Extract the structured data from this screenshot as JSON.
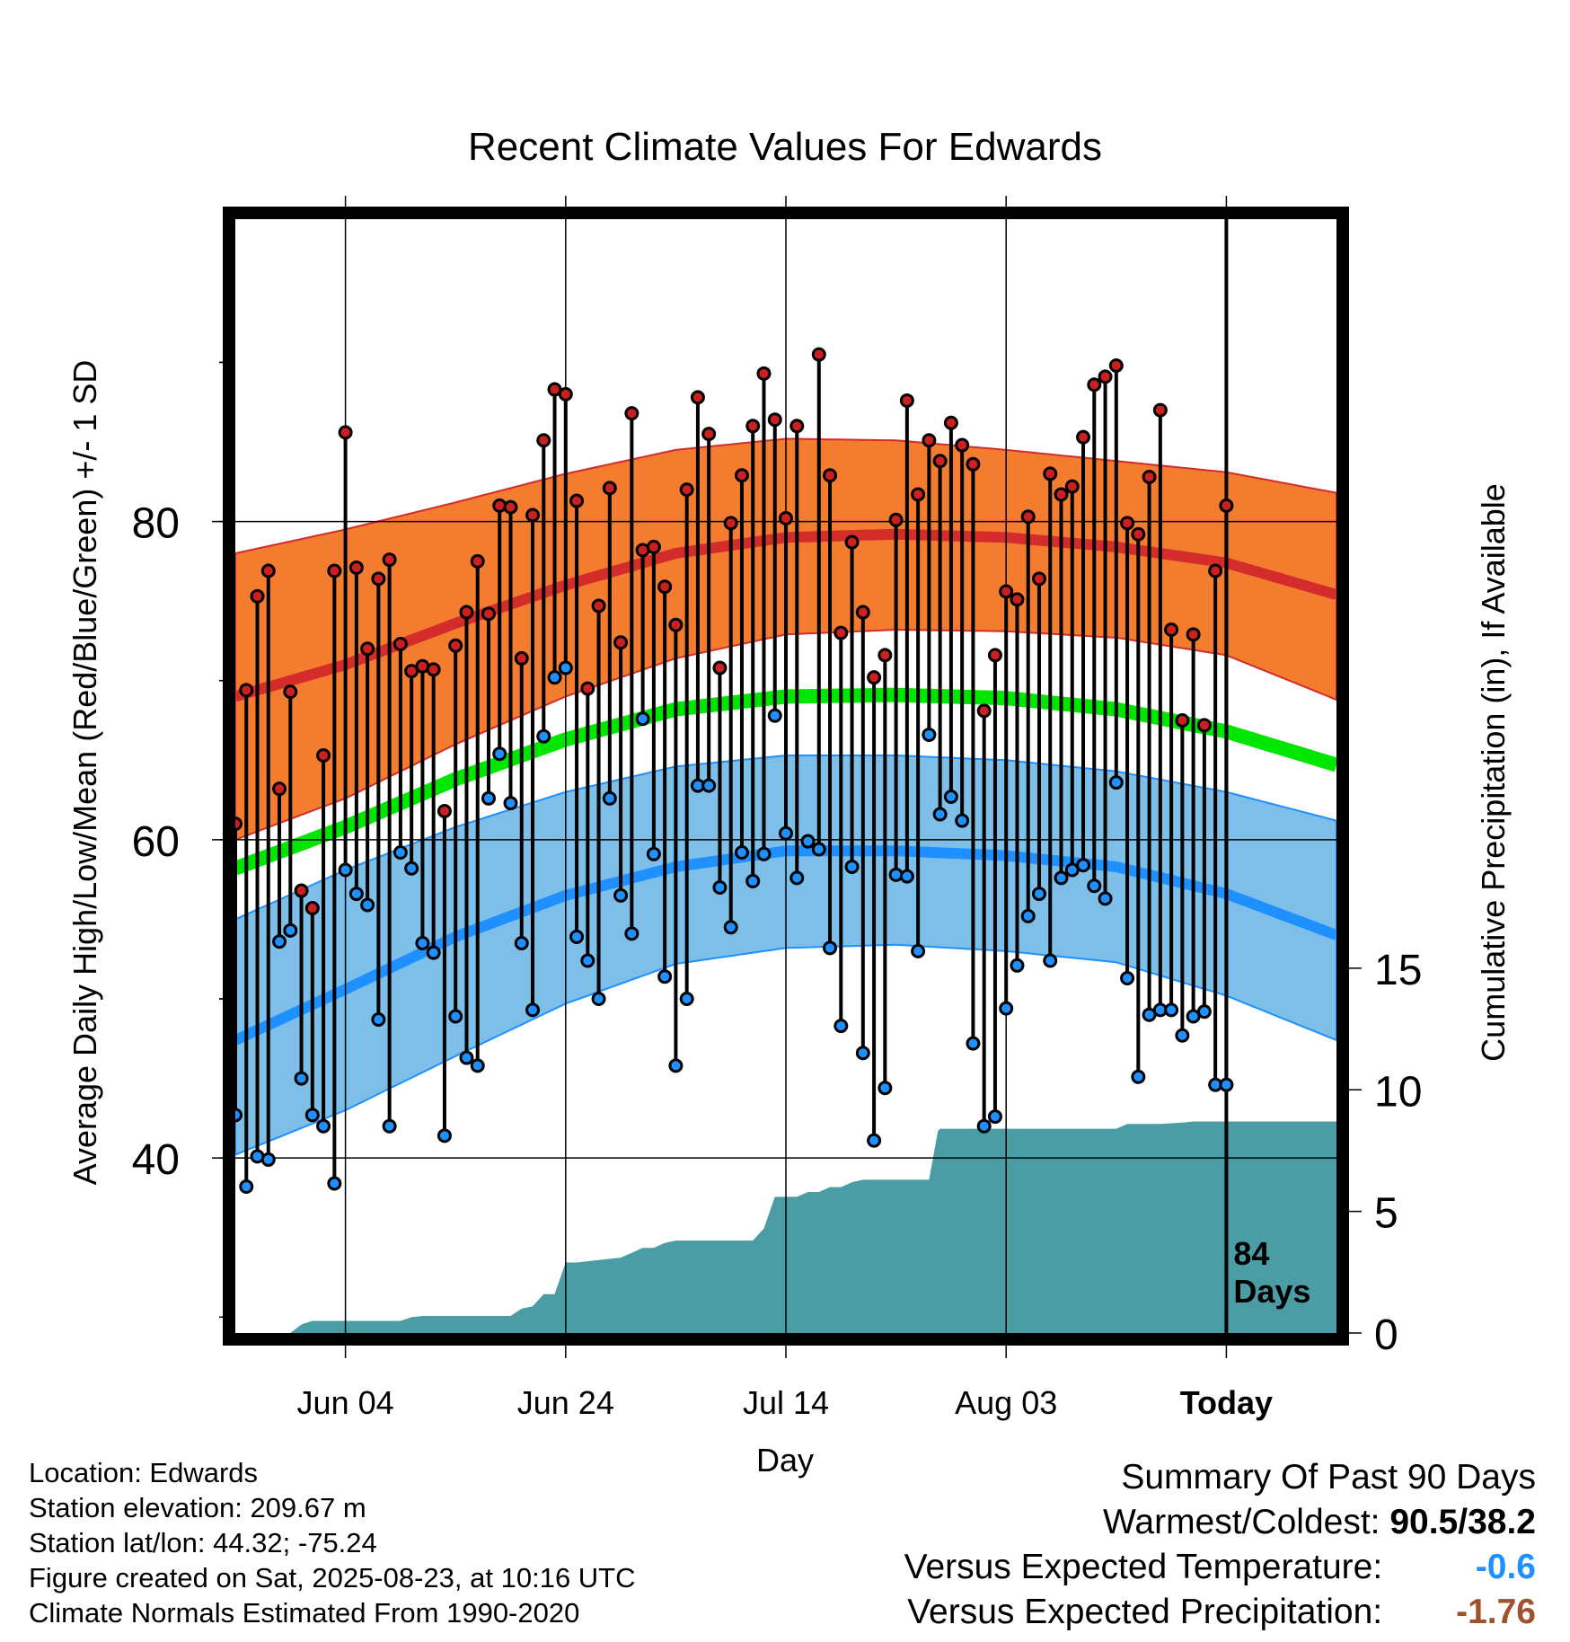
{
  "chart_data": {
    "type": "line",
    "title": "Recent Climate Values For Edwards",
    "xlabel": "Day",
    "ylabel": "Average Daily High/Low/Mean (Red/Blue/Green) +/- 1 SD",
    "y2label": "Cumulative Precipitation (in), If Available",
    "x_ticks": [
      "Jun 04",
      "Jun 24",
      "Jul 14",
      "Aug 03",
      "Today"
    ],
    "y_ticks": [
      "40",
      "60",
      "80"
    ],
    "y2_ticks": [
      "0",
      "5",
      "10",
      "15"
    ],
    "ylim": [
      29,
      99
    ],
    "y2lim": [
      0,
      45.8
    ],
    "day_range": [
      0,
      100
    ],
    "today_day": 90,
    "days_label": "84\nDays",
    "grid": true,
    "colors": {
      "high_band": "#f37c2f",
      "high_mean": "#d42b2b",
      "low_band": "#7dbfe8",
      "low_mean": "#1e90ff",
      "mean": "#00e600",
      "precip": "#4a9ca5",
      "high_point": "#cc2020",
      "low_point": "#1e90ff"
    },
    "normal_high": [
      {
        "day": 0,
        "upper": 78.0,
        "mean": 69.0,
        "lower": 60.0
      },
      {
        "day": 10,
        "upper": 79.5,
        "mean": 71.0,
        "lower": 62.6
      },
      {
        "day": 20,
        "upper": 81.2,
        "mean": 73.6,
        "lower": 66.0
      },
      {
        "day": 30,
        "upper": 83.0,
        "mean": 76.0,
        "lower": 69.0
      },
      {
        "day": 40,
        "upper": 84.5,
        "mean": 78.0,
        "lower": 71.4
      },
      {
        "day": 50,
        "upper": 85.2,
        "mean": 79.0,
        "lower": 72.9
      },
      {
        "day": 60,
        "upper": 85.1,
        "mean": 79.2,
        "lower": 73.2
      },
      {
        "day": 70,
        "upper": 84.5,
        "mean": 79.0,
        "lower": 73.1
      },
      {
        "day": 80,
        "upper": 83.8,
        "mean": 78.4,
        "lower": 72.7
      },
      {
        "day": 90,
        "upper": 83.1,
        "mean": 77.4,
        "lower": 71.6
      },
      {
        "day": 100,
        "upper": 81.8,
        "mean": 75.4,
        "lower": 68.8
      }
    ],
    "normal_low": [
      {
        "day": 0,
        "upper": 55.0,
        "mean": 47.4,
        "lower": 40.2
      },
      {
        "day": 10,
        "upper": 58.1,
        "mean": 50.6,
        "lower": 43.0
      },
      {
        "day": 20,
        "upper": 60.8,
        "mean": 53.9,
        "lower": 46.4
      },
      {
        "day": 30,
        "upper": 63.0,
        "mean": 56.5,
        "lower": 49.7
      },
      {
        "day": 40,
        "upper": 64.6,
        "mean": 58.3,
        "lower": 52.2
      },
      {
        "day": 50,
        "upper": 65.3,
        "mean": 59.3,
        "lower": 53.2
      },
      {
        "day": 60,
        "upper": 65.3,
        "mean": 59.3,
        "lower": 53.4
      },
      {
        "day": 70,
        "upper": 65.0,
        "mean": 59.0,
        "lower": 53.0
      },
      {
        "day": 80,
        "upper": 64.3,
        "mean": 58.3,
        "lower": 52.3
      },
      {
        "day": 90,
        "upper": 63.0,
        "mean": 56.6,
        "lower": 50.2
      },
      {
        "day": 100,
        "upper": 61.2,
        "mean": 54.0,
        "lower": 47.4
      }
    ],
    "normal_mean": [
      {
        "day": 0,
        "value": 58.2
      },
      {
        "day": 10,
        "value": 60.8
      },
      {
        "day": 20,
        "value": 63.8
      },
      {
        "day": 30,
        "value": 66.3
      },
      {
        "day": 40,
        "value": 68.2
      },
      {
        "day": 50,
        "value": 69.0
      },
      {
        "day": 60,
        "value": 69.1
      },
      {
        "day": 70,
        "value": 68.9
      },
      {
        "day": 80,
        "value": 68.2
      },
      {
        "day": 90,
        "value": 66.8
      },
      {
        "day": 100,
        "value": 64.7
      }
    ],
    "daily": [
      [
        0,
        61.0,
        42.7
      ],
      [
        1,
        69.4,
        38.2
      ],
      [
        2,
        75.3,
        40.1
      ],
      [
        3,
        76.9,
        39.9
      ],
      [
        4,
        63.2,
        53.6
      ],
      [
        5,
        69.3,
        54.3
      ],
      [
        6,
        56.8,
        45.0
      ],
      [
        7,
        55.7,
        42.7
      ],
      [
        8,
        65.3,
        42.0
      ],
      [
        9,
        76.9,
        38.4
      ],
      [
        10,
        85.6,
        58.1
      ],
      [
        11,
        77.1,
        56.6
      ],
      [
        12,
        72.0,
        55.9
      ],
      [
        13,
        76.4,
        48.7
      ],
      [
        14,
        77.6,
        42.0
      ],
      [
        15,
        72.3,
        59.2
      ],
      [
        16,
        70.6,
        58.2
      ],
      [
        17,
        70.9,
        53.5
      ],
      [
        18,
        70.7,
        52.9
      ],
      [
        19,
        61.8,
        41.4
      ],
      [
        20,
        72.2,
        48.9
      ],
      [
        21,
        74.3,
        46.3
      ],
      [
        22,
        77.5,
        45.8
      ],
      [
        23,
        74.2,
        62.6
      ],
      [
        24,
        81.0,
        65.4
      ],
      [
        25,
        80.9,
        62.3
      ],
      [
        26,
        71.4,
        53.5
      ],
      [
        27,
        80.4,
        49.3
      ],
      [
        28,
        85.1,
        66.5
      ],
      [
        29,
        88.3,
        70.2
      ],
      [
        30,
        88.0,
        70.8
      ],
      [
        31,
        81.3,
        53.9
      ],
      [
        32,
        69.5,
        52.4
      ],
      [
        33,
        74.7,
        50.0
      ],
      [
        34,
        82.1,
        62.6
      ],
      [
        35,
        72.4,
        56.5
      ],
      [
        36,
        86.8,
        54.1
      ],
      [
        37,
        78.2,
        67.6
      ],
      [
        38,
        78.4,
        59.1
      ],
      [
        39,
        75.9,
        51.4
      ],
      [
        40,
        73.5,
        45.8
      ],
      [
        41,
        82.0,
        50.0
      ],
      [
        42,
        87.8,
        63.4
      ],
      [
        43,
        85.5,
        63.4
      ],
      [
        44,
        70.8,
        57.0
      ],
      [
        45,
        79.9,
        54.5
      ],
      [
        46,
        82.9,
        59.2
      ],
      [
        47,
        86.0,
        57.4
      ],
      [
        48,
        89.3,
        59.1
      ],
      [
        49,
        86.4,
        67.8
      ],
      [
        50,
        80.2,
        60.4
      ],
      [
        51,
        86.0,
        57.6
      ],
      [
        52,
        59.9,
        59.9
      ],
      [
        53,
        90.5,
        59.4
      ],
      [
        54,
        82.9,
        53.2
      ],
      [
        55,
        73.0,
        48.3
      ],
      [
        56,
        78.7,
        58.3
      ],
      [
        57,
        74.3,
        46.6
      ],
      [
        58,
        70.2,
        41.1
      ],
      [
        59,
        71.6,
        44.4
      ],
      [
        60,
        80.1,
        57.8
      ],
      [
        61,
        87.6,
        57.7
      ],
      [
        62,
        81.7,
        53.0
      ],
      [
        63,
        85.1,
        66.6
      ],
      [
        64,
        83.8,
        61.6
      ],
      [
        65,
        86.2,
        62.7
      ],
      [
        66,
        84.8,
        61.2
      ],
      [
        67,
        83.6,
        47.2
      ],
      [
        68,
        68.1,
        42.0
      ],
      [
        69,
        71.6,
        42.6
      ],
      [
        70,
        75.6,
        49.4
      ],
      [
        71,
        75.1,
        52.1
      ],
      [
        72,
        80.3,
        55.2
      ],
      [
        73,
        76.4,
        56.6
      ],
      [
        74,
        83.0,
        52.4
      ],
      [
        75,
        81.7,
        57.6
      ],
      [
        76,
        82.2,
        58.1
      ],
      [
        77,
        85.3,
        58.4
      ],
      [
        78,
        88.6,
        57.1
      ],
      [
        79,
        89.1,
        56.3
      ],
      [
        80,
        89.8,
        63.6
      ],
      [
        81,
        79.9,
        51.3
      ],
      [
        82,
        79.2,
        45.1
      ],
      [
        83,
        82.8,
        49.0
      ],
      [
        84,
        87.0,
        49.3
      ],
      [
        85,
        73.2,
        49.3
      ],
      [
        86,
        67.5,
        47.7
      ],
      [
        87,
        72.9,
        48.9
      ],
      [
        88,
        67.2,
        49.2
      ],
      [
        89,
        76.9,
        44.6
      ],
      [
        90,
        81.0,
        44.6
      ]
    ],
    "precip_cumulative": [
      [
        0,
        0
      ],
      [
        5,
        0
      ],
      [
        6,
        0.35
      ],
      [
        7,
        0.5
      ],
      [
        10,
        0.5
      ],
      [
        15,
        0.5
      ],
      [
        16,
        0.65
      ],
      [
        17,
        0.7
      ],
      [
        25,
        0.7
      ],
      [
        26,
        1.0
      ],
      [
        27,
        1.1
      ],
      [
        28,
        1.6
      ],
      [
        29,
        1.6
      ],
      [
        30,
        2.9
      ],
      [
        31,
        2.9
      ],
      [
        33,
        3.0
      ],
      [
        35,
        3.1
      ],
      [
        36,
        3.3
      ],
      [
        37,
        3.5
      ],
      [
        38,
        3.5
      ],
      [
        39,
        3.7
      ],
      [
        40,
        3.8
      ],
      [
        45,
        3.8
      ],
      [
        47,
        3.8
      ],
      [
        48,
        4.3
      ],
      [
        49,
        5.6
      ],
      [
        51,
        5.6
      ],
      [
        52,
        5.8
      ],
      [
        53,
        5.8
      ],
      [
        54,
        6.0
      ],
      [
        55,
        6.0
      ],
      [
        56,
        6.2
      ],
      [
        57,
        6.3
      ],
      [
        60,
        6.3
      ],
      [
        62,
        6.3
      ],
      [
        63,
        6.3
      ],
      [
        63.8,
        8.3
      ],
      [
        64,
        8.4
      ],
      [
        80,
        8.4
      ],
      [
        81,
        8.6
      ],
      [
        84,
        8.6
      ],
      [
        86,
        8.65
      ],
      [
        87,
        8.7
      ],
      [
        90,
        8.7
      ],
      [
        100,
        8.7
      ]
    ]
  },
  "info": {
    "location": "Location: Edwards",
    "elevation": "Station elevation: 209.67 m",
    "latlon": "Station lat/lon: 44.32; -75.24",
    "created": "Figure created on Sat, 2025-08-23, at 10:16 UTC",
    "normals": "Climate Normals Estimated From 1990-2020"
  },
  "summary": {
    "title": "Summary Of Past 90 Days",
    "warmest_label": "Warmest/Coldest:",
    "warmest_value": "90.5/38.2",
    "temp_label": "Versus Expected Temperature:",
    "temp_value": "-0.6",
    "temp_color": "#1e90ff",
    "precip_label": "Versus Expected Precipitation:",
    "precip_value": "-1.76",
    "precip_color": "#a0522d"
  }
}
